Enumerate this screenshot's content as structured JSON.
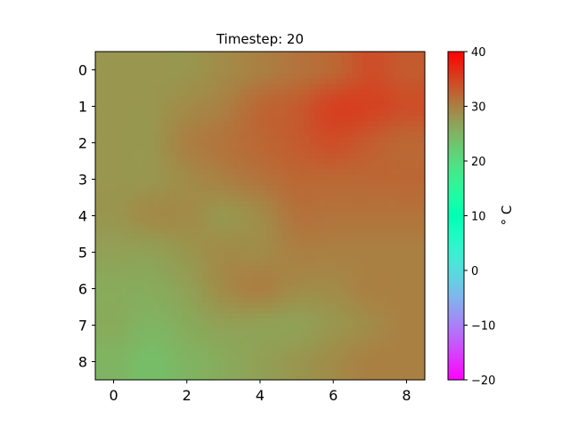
{
  "chart_data": {
    "type": "heatmap",
    "title": "Timestep: 20",
    "xlabel": "",
    "ylabel": "",
    "x_ticks": [
      "0",
      "2",
      "4",
      "6",
      "8"
    ],
    "y_ticks": [
      "0",
      "1",
      "2",
      "3",
      "4",
      "5",
      "6",
      "7",
      "8"
    ],
    "x_tick_values": [
      0,
      2,
      4,
      6,
      8
    ],
    "y_tick_values": [
      0,
      1,
      2,
      3,
      4,
      5,
      6,
      7,
      8
    ],
    "xlim": [
      -0.5,
      8.5
    ],
    "ylim": [
      8.5,
      -0.5
    ],
    "rows": 9,
    "cols": 9,
    "interpolation": "bicubic",
    "colormap": "rainbow",
    "values": [
      [
        28,
        28,
        28,
        29,
        30,
        31,
        32,
        34,
        33
      ],
      [
        28,
        28,
        29,
        30,
        32,
        33,
        35,
        35,
        34
      ],
      [
        28,
        28,
        30,
        31,
        32,
        33,
        34,
        33,
        32
      ],
      [
        28,
        28,
        29,
        30,
        31,
        32,
        32,
        32,
        32
      ],
      [
        28,
        29,
        29,
        28,
        29,
        31,
        31,
        31,
        31
      ],
      [
        27,
        27,
        28,
        29,
        29,
        30,
        30,
        30,
        30
      ],
      [
        26,
        26,
        27,
        29,
        30,
        29,
        29,
        30,
        30
      ],
      [
        26,
        25,
        26,
        27,
        27,
        27,
        28,
        29,
        30
      ],
      [
        25,
        24,
        25,
        26,
        27,
        28,
        29,
        30,
        30
      ]
    ],
    "colorbar": {
      "label": "° C",
      "min": -20,
      "max": 40,
      "ticks": [
        "40",
        "30",
        "20",
        "10",
        "0",
        "−10",
        "−20"
      ],
      "tick_values": [
        40,
        30,
        20,
        10,
        0,
        -10,
        -20
      ]
    }
  }
}
